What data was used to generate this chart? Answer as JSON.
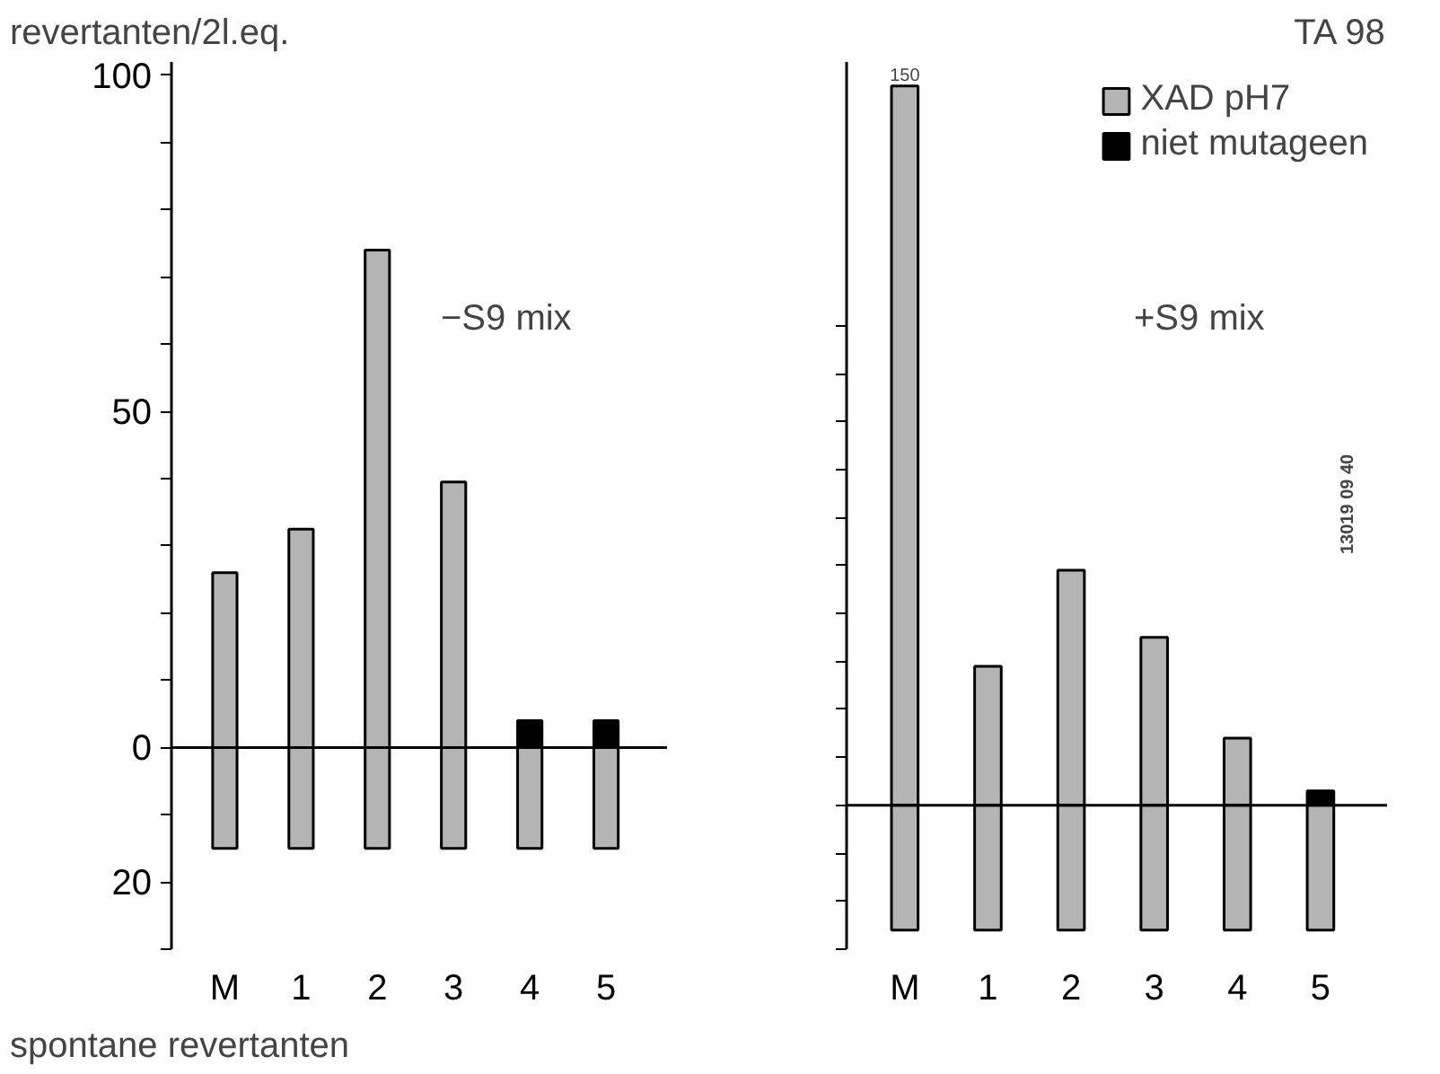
{
  "chart_data": [
    {
      "type": "bar",
      "ylabel": "revertanten/2l.eq.",
      "categories": [
        "M",
        "1",
        "2",
        "3",
        "4",
        "5"
      ],
      "series": [
        {
          "color": "#b4b4b4",
          "values": [
            26,
            32.5,
            74,
            39.5,
            null,
            null
          ]
        },
        {
          "color": "#000000",
          "values": [
            null,
            null,
            null,
            null,
            4,
            4
          ]
        },
        {
          "color": "#b4b4b4",
          "values": [
            -15,
            -15,
            -15,
            -15,
            -15,
            -15
          ]
        }
      ],
      "ylim": [
        -30,
        102
      ],
      "yticks": [
        {
          "value": -30,
          "label": null
        },
        {
          "value": -20,
          "label": "20"
        },
        {
          "value": -10,
          "label": null
        },
        0,
        {
          "value": 10,
          "label": null
        },
        {
          "value": 20,
          "label": null
        },
        {
          "value": 30,
          "label": null
        },
        {
          "value": 40,
          "label": null
        },
        50,
        {
          "value": 60,
          "label": null
        },
        {
          "value": 70,
          "label": null
        },
        {
          "value": 80,
          "label": null
        },
        {
          "value": 90,
          "label": null
        },
        100
      ],
      "annotations": [
        "−S9 mix",
        "spontane revertanten"
      ],
      "ref_lines": [
        {
          "axis": "y",
          "value": 0,
          "color": "#000000"
        }
      ],
      "stacked": true,
      "grid": false,
      "legend": false
    },
    {
      "type": "bar",
      "title": "TA 98",
      "categories": [
        "M",
        "1",
        "2",
        "3",
        "4",
        "5"
      ],
      "series": [
        {
          "name": "XAD pH7",
          "color": "#b4b4b4",
          "values": [
            150,
            29,
            49,
            35,
            14,
            null
          ],
          "value_labels": [
            "150",
            null,
            null,
            null,
            null,
            null
          ]
        },
        {
          "name": "niet mutageen",
          "color": "#000000",
          "values": [
            null,
            null,
            null,
            null,
            null,
            3
          ]
        },
        {
          "color": "#b4b4b4",
          "values": [
            -26,
            -26,
            -26,
            -26,
            -26,
            -26
          ]
        }
      ],
      "ylim": [
        -30,
        155
      ],
      "yticks": [
        {
          "value": -30,
          "label": null
        },
        {
          "value": -20,
          "label": null
        },
        {
          "value": -10,
          "label": null
        },
        {
          "value": 0,
          "label": null
        },
        {
          "value": 10,
          "label": null
        },
        {
          "value": 20,
          "label": null
        },
        {
          "value": 30,
          "label": null
        },
        {
          "value": 40,
          "label": null
        },
        {
          "value": 50,
          "label": null
        },
        {
          "value": 60,
          "label": null
        },
        {
          "value": 70,
          "label": null
        },
        {
          "value": 80,
          "label": null
        },
        {
          "value": 90,
          "label": null
        },
        {
          "value": 100,
          "label": null
        }
      ],
      "tick_labels": "x",
      "annotations": [
        "+S9 mix",
        "13019 09 40"
      ],
      "ref_lines": [
        {
          "axis": "y",
          "value": 0,
          "color": "#000000"
        }
      ],
      "stacked": true,
      "grid": false,
      "legend": "top right"
    }
  ]
}
